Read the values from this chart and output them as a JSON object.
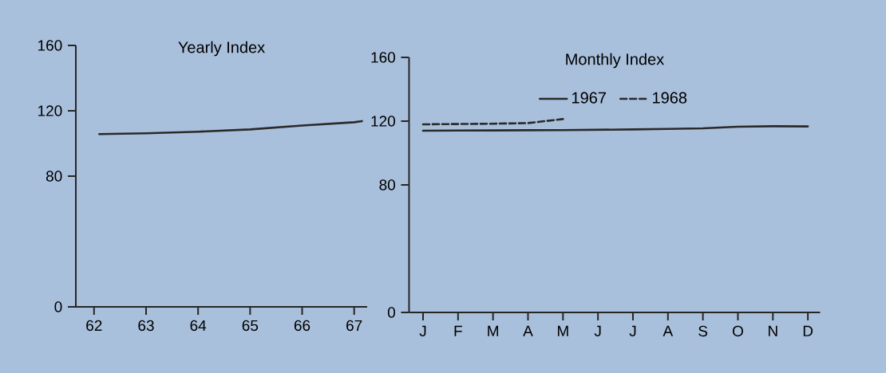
{
  "chart_data": [
    {
      "type": "line",
      "title": "Yearly Index",
      "x": [
        62.1,
        63,
        64,
        65,
        66,
        67,
        67.15
      ],
      "values": [
        105.7,
        106.2,
        107.2,
        108.6,
        111,
        113,
        113.7
      ],
      "color": "#2b2a2a",
      "xlim": [
        61.65,
        67.25
      ],
      "xticks": [
        62,
        63,
        64,
        65,
        66,
        67
      ],
      "ylim": [
        0,
        160
      ],
      "yticks": [
        0,
        80,
        120,
        160
      ],
      "grid": false,
      "legend": false
    },
    {
      "type": "line",
      "title": "Monthly Index",
      "categories": [
        "J",
        "F",
        "M",
        "A",
        "M",
        "J",
        "J",
        "A",
        "S",
        "O",
        "N",
        "D"
      ],
      "series": [
        {
          "name": "1967",
          "color": "#2b2a2a",
          "line_style": "solid",
          "values": [
            114.0,
            114.1,
            114.2,
            114.3,
            114.4,
            114.6,
            114.8,
            115.1,
            115.5,
            116.5,
            116.8,
            116.7
          ]
        },
        {
          "name": "1968",
          "color": "#2b2a2a",
          "line_style": "dashed",
          "values": [
            118,
            118.2,
            118.4,
            118.8,
            121.3,
            null,
            null,
            null,
            null,
            null,
            null,
            null
          ]
        }
      ],
      "ylim": [
        0,
        160
      ],
      "yticks": [
        0,
        80,
        120,
        160
      ],
      "grid": false,
      "legend": "top"
    }
  ]
}
